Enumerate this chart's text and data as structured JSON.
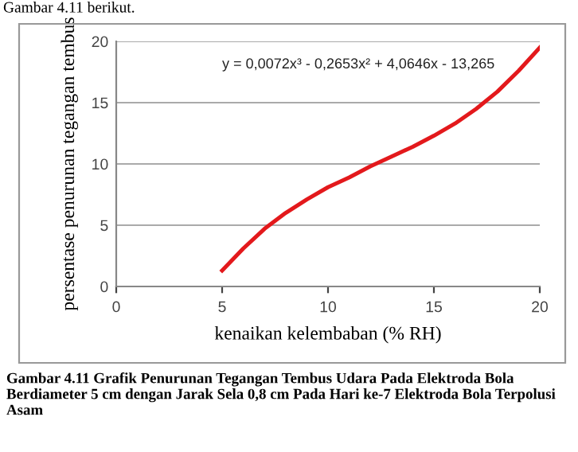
{
  "chart_data": {
    "type": "line",
    "xlabel": "kenaikan kelembaban (% RH)",
    "ylabel": "persentase penurunan tegangan tembus",
    "x": [
      5,
      6,
      7,
      8,
      9,
      10,
      11,
      12,
      13,
      14,
      15,
      16,
      17,
      18,
      19,
      20
    ],
    "series": [
      {
        "color": "#e3191c",
        "values": [
          1.3,
          3.1,
          4.7,
          6.0,
          7.1,
          8.1,
          8.9,
          9.8,
          10.6,
          11.4,
          12.3,
          13.3,
          14.5,
          15.9,
          17.6,
          19.5
        ]
      }
    ],
    "xlim": [
      0,
      20
    ],
    "xticks": [
      0,
      5,
      10,
      15,
      20
    ],
    "ylim": [
      0,
      20
    ],
    "yticks": [
      0,
      5,
      10,
      15,
      20
    ],
    "grid": "y",
    "legend": false,
    "marker": "none",
    "line_style": "solid",
    "annotations": [
      "y = 0,0072x³ - 0,2653x² + 4,0646x - 13,265",
      "Gambar 4.11 berikut.",
      "Gambar 4.11 Grafik Penurunan Tegangan Tembus Udara Pada Elektroda Bola Berdiameter 5 cm dengan Jarak Sela 0,8 cm Pada Hari ke-7 Elektroda Bola Terpolusi Asam"
    ]
  }
}
